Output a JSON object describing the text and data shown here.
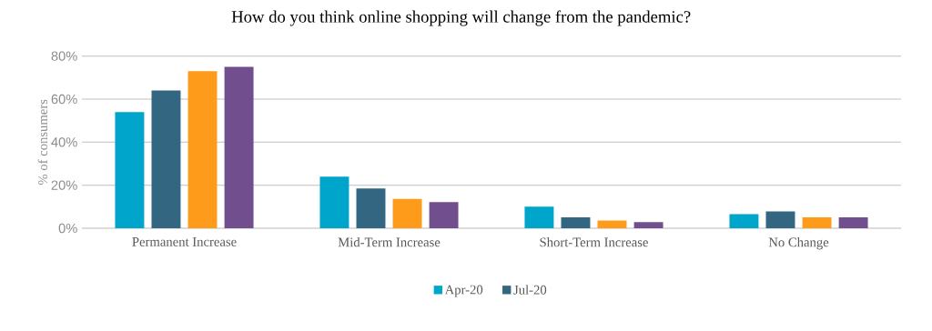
{
  "chart_data": {
    "type": "bar",
    "title": "How do you think online shopping will change from the pandemic?",
    "ylabel": "% of consumers",
    "categories": [
      "Permanent Increase",
      "Mid-Term Increase",
      "Short-Term Increase",
      "No Change"
    ],
    "series": [
      {
        "name": "Apr-20",
        "color": "#00a5cc",
        "values": [
          54,
          24,
          10,
          6.6
        ]
      },
      {
        "name": "Jul-20",
        "color": "#336680",
        "values": [
          64,
          18.5,
          5.1,
          7.8
        ]
      },
      {
        "color": "#ff9b1a",
        "values": [
          73,
          13.6,
          3.6,
          5.1
        ]
      },
      {
        "color": "#714f8e",
        "values": [
          75,
          12.2,
          2.9,
          5.1
        ]
      }
    ],
    "ylim": [
      0,
      80
    ],
    "yticks": [
      {
        "value": 0,
        "label": "0%"
      },
      {
        "value": 20,
        "label": "20%"
      },
      {
        "value": 40,
        "label": "40%"
      },
      {
        "value": 60,
        "label": "60%"
      },
      {
        "value": 80,
        "label": "80%"
      }
    ],
    "grid": "y",
    "legend": "bottom"
  }
}
